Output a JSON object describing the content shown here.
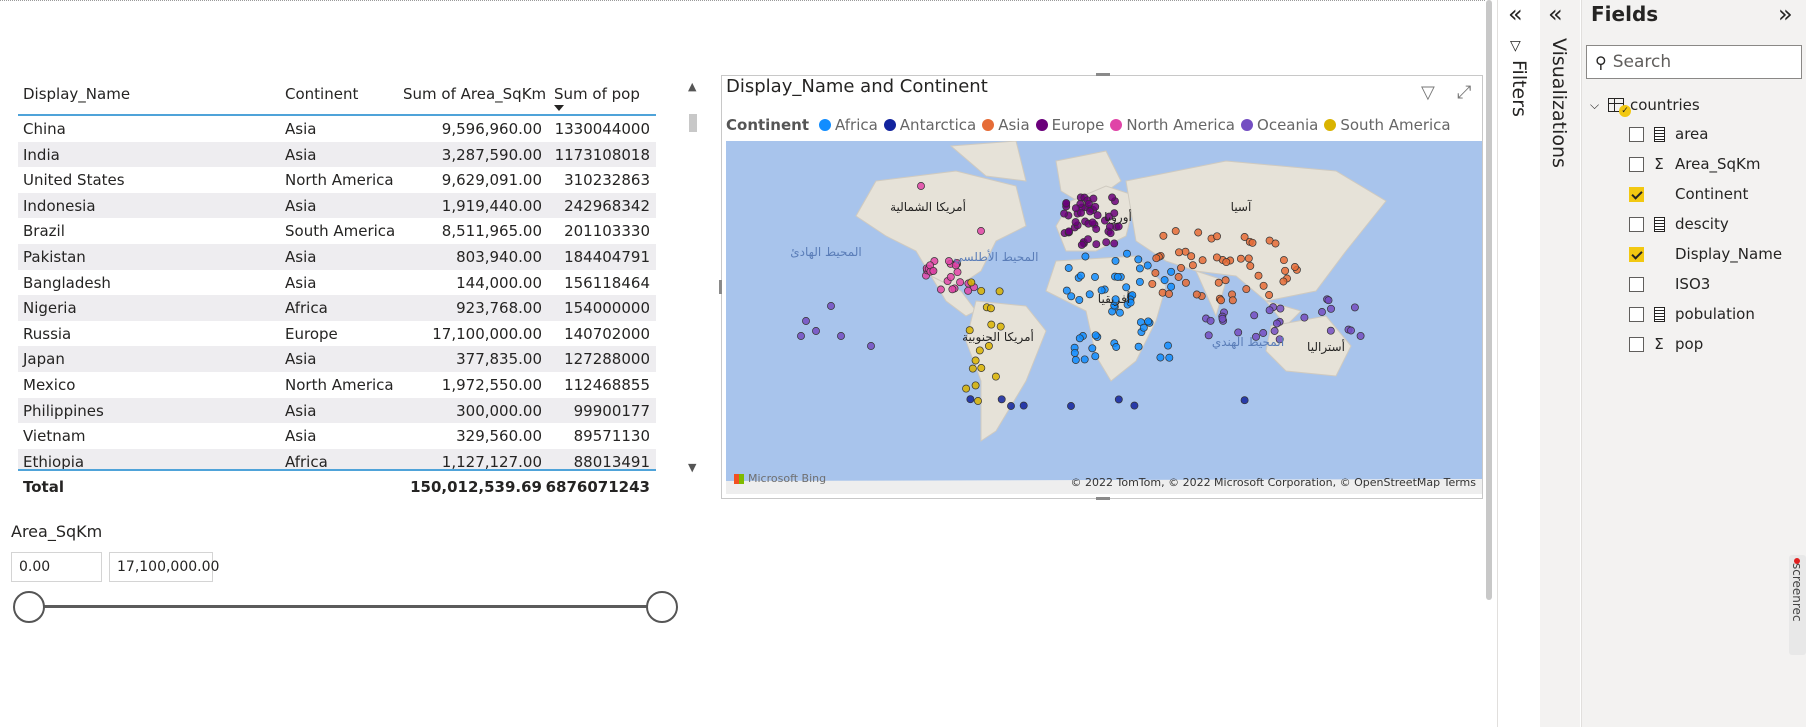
{
  "table": {
    "headers": [
      "Display_Name",
      "Continent",
      "Sum of Area_SqKm",
      "Sum of pop"
    ],
    "rows": [
      [
        "China",
        "Asia",
        "9,596,960.00",
        "1330044000"
      ],
      [
        "India",
        "Asia",
        "3,287,590.00",
        "1173108018"
      ],
      [
        "United States",
        "North America",
        "9,629,091.00",
        "310232863"
      ],
      [
        "Indonesia",
        "Asia",
        "1,919,440.00",
        "242968342"
      ],
      [
        "Brazil",
        "South America",
        "8,511,965.00",
        "201103330"
      ],
      [
        "Pakistan",
        "Asia",
        "803,940.00",
        "184404791"
      ],
      [
        "Bangladesh",
        "Asia",
        "144,000.00",
        "156118464"
      ],
      [
        "Nigeria",
        "Africa",
        "923,768.00",
        "154000000"
      ],
      [
        "Russia",
        "Europe",
        "17,100,000.00",
        "140702000"
      ],
      [
        "Japan",
        "Asia",
        "377,835.00",
        "127288000"
      ],
      [
        "Mexico",
        "North America",
        "1,972,550.00",
        "112468855"
      ],
      [
        "Philippines",
        "Asia",
        "300,000.00",
        "99900177"
      ],
      [
        "Vietnam",
        "Asia",
        "329,560.00",
        "89571130"
      ],
      [
        "Ethiopia",
        "Africa",
        "1,127,127.00",
        "88013491"
      ]
    ],
    "total": {
      "label": "Total",
      "area": "150,012,539.69",
      "pop": "6876071243"
    }
  },
  "slicer": {
    "title": "Area_SqKm",
    "min_value": "0.00",
    "max_value": "17,100,000.00",
    "range_fraction": [
      0,
      1
    ]
  },
  "map": {
    "title": "Display_Name and Continent",
    "legend_title": "Continent",
    "legend": [
      {
        "name": "Africa",
        "color": "#118dff"
      },
      {
        "name": "Antarctica",
        "color": "#12239e"
      },
      {
        "name": "Asia",
        "color": "#e66c37"
      },
      {
        "name": "Europe",
        "color": "#6b007b"
      },
      {
        "name": "North America",
        "color": "#e044a7"
      },
      {
        "name": "Oceania",
        "color": "#744ec2"
      },
      {
        "name": "South America",
        "color": "#d9b300"
      }
    ],
    "map_labels": [
      "أمريكا الشمالية",
      "المحيط الهادئ",
      "المحيط الأطلسي",
      "أوروبا",
      "آسيا",
      "أفريقيا",
      "أمريكا الجنوبية",
      "المحيط الهندي",
      "أستراليا"
    ],
    "bing_label": "Microsoft Bing",
    "attribution": "© 2022 TomTom, © 2022 Microsoft Corporation, © OpenStreetMap Terms"
  },
  "panes": {
    "filters_label": "Filters",
    "visualizations_label": "Visualizations",
    "fields_title": "Fields",
    "search_placeholder": "Search",
    "table_name": "countries",
    "fields": [
      {
        "name": "area",
        "icon": "calculator-icon",
        "checked": false
      },
      {
        "name": "Area_SqKm",
        "icon": "sigma-icon",
        "checked": false
      },
      {
        "name": "Continent",
        "icon": "",
        "checked": true
      },
      {
        "name": "descity",
        "icon": "calculator-icon",
        "checked": false
      },
      {
        "name": "Display_Name",
        "icon": "",
        "checked": true
      },
      {
        "name": "ISO3",
        "icon": "",
        "checked": false
      },
      {
        "name": "pobulation",
        "icon": "calculator-icon",
        "checked": false
      },
      {
        "name": "pop",
        "icon": "sigma-icon",
        "checked": false
      }
    ]
  },
  "badge": {
    "text": "screenrec"
  }
}
